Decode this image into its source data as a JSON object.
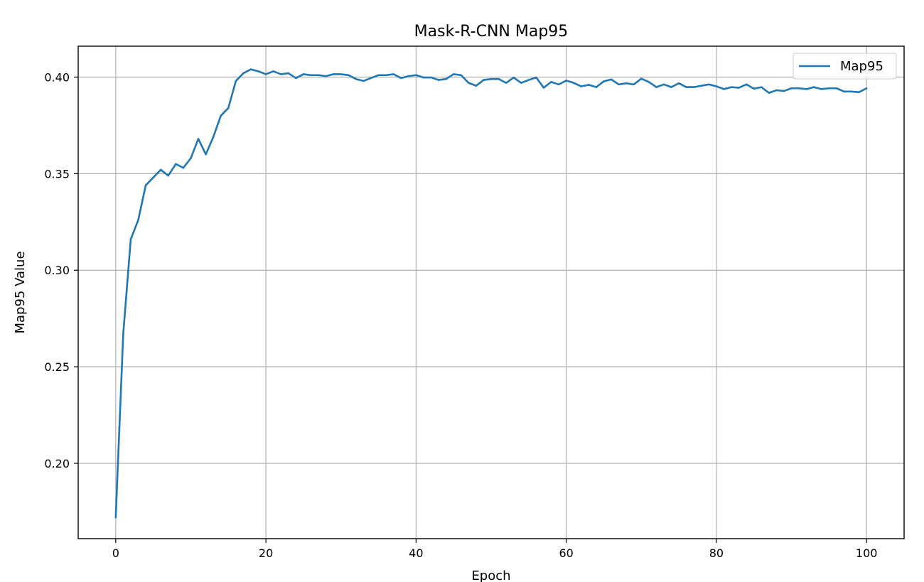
{
  "chart_data": {
    "type": "line",
    "title": "Mask-R-CNN Map95",
    "xlabel": "Epoch",
    "ylabel": "Map95 Value",
    "xlim": [
      -5,
      105
    ],
    "ylim": [
      0.161,
      0.416
    ],
    "xticks": [
      0,
      20,
      40,
      60,
      80,
      100
    ],
    "xtick_labels": [
      "0",
      "20",
      "40",
      "60",
      "80",
      "100"
    ],
    "yticks": [
      0.2,
      0.25,
      0.3,
      0.35,
      0.4
    ],
    "ytick_labels": [
      "0.20",
      "0.25",
      "0.30",
      "0.35",
      "0.40"
    ],
    "grid": true,
    "legend_position": "top-right",
    "series": [
      {
        "name": "Map95",
        "color": "#1f77b4",
        "x": [
          0,
          1,
          2,
          3,
          4,
          5,
          6,
          7,
          8,
          9,
          10,
          11,
          12,
          13,
          14,
          15,
          16,
          17,
          18,
          19,
          20,
          21,
          22,
          23,
          24,
          25,
          26,
          27,
          28,
          29,
          30,
          31,
          32,
          33,
          34,
          35,
          36,
          37,
          38,
          39,
          40,
          41,
          42,
          43,
          44,
          45,
          46,
          47,
          48,
          49,
          50,
          51,
          52,
          53,
          54,
          55,
          56,
          57,
          58,
          59,
          60,
          61,
          62,
          63,
          64,
          65,
          66,
          67,
          68,
          69,
          70,
          71,
          72,
          73,
          74,
          75,
          76,
          77,
          78,
          79,
          80,
          81,
          82,
          83,
          84,
          85,
          86,
          87,
          88,
          89,
          90,
          91,
          92,
          93,
          94,
          95,
          96,
          97,
          98,
          99,
          100
        ],
        "values": [
          0.172,
          0.267,
          0.316,
          0.326,
          0.344,
          0.348,
          0.352,
          0.349,
          0.355,
          0.353,
          0.358,
          0.368,
          0.36,
          0.369,
          0.38,
          0.384,
          0.398,
          0.402,
          0.404,
          0.403,
          0.4015,
          0.403,
          0.4015,
          0.402,
          0.3995,
          0.4015,
          0.401,
          0.401,
          0.4005,
          0.4015,
          0.4015,
          0.401,
          0.399,
          0.398,
          0.3995,
          0.401,
          0.401,
          0.4015,
          0.3995,
          0.4005,
          0.401,
          0.3998,
          0.3998,
          0.3985,
          0.399,
          0.4015,
          0.401,
          0.397,
          0.3955,
          0.3985,
          0.399,
          0.399,
          0.397,
          0.3998,
          0.397,
          0.3985,
          0.3998,
          0.3945,
          0.3975,
          0.3962,
          0.3982,
          0.397,
          0.3952,
          0.396,
          0.3948,
          0.3978,
          0.3988,
          0.3962,
          0.3968,
          0.3962,
          0.3992,
          0.3975,
          0.3948,
          0.3962,
          0.3948,
          0.3968,
          0.3948,
          0.3948,
          0.3955,
          0.3962,
          0.3952,
          0.3938,
          0.3948,
          0.3945,
          0.3962,
          0.394,
          0.3948,
          0.3918,
          0.3932,
          0.3928,
          0.3942,
          0.3942,
          0.3938,
          0.3948,
          0.3938,
          0.3942,
          0.3942,
          0.3925,
          0.3925,
          0.3922,
          0.3942
        ]
      }
    ]
  }
}
